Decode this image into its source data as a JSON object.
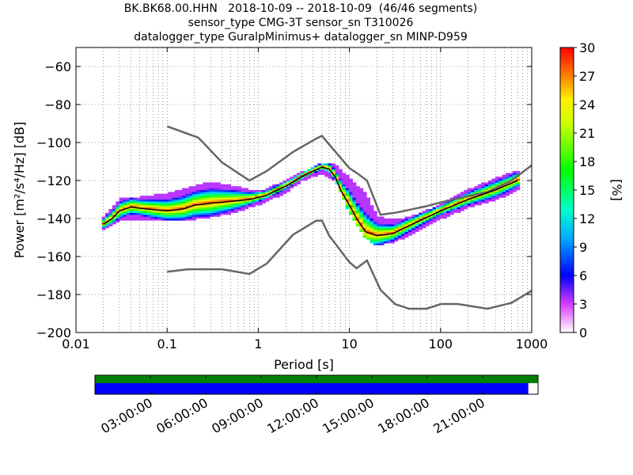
{
  "title": {
    "line1": "BK.BK68.00.HHN   2018-10-09 -- 2018-10-09  (46/46 segments)",
    "line2": "sensor_type CMG-3T sensor_sn T310026",
    "line3": "datalogger_type GuralpMinimus+ datalogger_sn MINP-D959"
  },
  "chart_data": {
    "type": "heatmap",
    "xlabel": "Period [s]",
    "ylabel": "Power [m²/s⁴/Hz] [dB]",
    "xscale": "log",
    "xlim": [
      0.01,
      1000
    ],
    "ylim": [
      -200,
      -50
    ],
    "xticks": [
      0.01,
      0.1,
      1,
      10,
      100,
      1000
    ],
    "xtick_labels": [
      "0.01",
      "0.1",
      "1",
      "10",
      "100",
      "1000"
    ],
    "yticks": [
      -200,
      -180,
      -160,
      -140,
      -120,
      -100,
      -80,
      -60
    ],
    "ytick_labels": [
      "−200",
      "−180",
      "−160",
      "−140",
      "−120",
      "−100",
      "−80",
      "−60"
    ],
    "grid": true,
    "colorbar": {
      "label": "[%]",
      "range": [
        0,
        30
      ],
      "ticks": [
        "0",
        "3",
        "6",
        "9",
        "12",
        "15",
        "18",
        "21",
        "24",
        "27",
        "30"
      ]
    },
    "mode_line": {
      "period": [
        0.02,
        0.025,
        0.03,
        0.04,
        0.06,
        0.1,
        0.15,
        0.2,
        0.3,
        0.5,
        0.8,
        1.2,
        2,
        3,
        4,
        5,
        6,
        7,
        8,
        10,
        12,
        15,
        20,
        30,
        40,
        60,
        100,
        200,
        400,
        700
      ],
      "power": [
        -143,
        -140,
        -136,
        -134,
        -135,
        -136,
        -135,
        -133,
        -132,
        -131,
        -130,
        -128,
        -123,
        -118,
        -115,
        -113,
        -114,
        -118,
        -125,
        -133,
        -140,
        -147,
        -149,
        -148,
        -145,
        -141,
        -136,
        -130,
        -125,
        -120
      ]
    },
    "spread": {
      "period": [
        0.02,
        0.03,
        0.05,
        0.1,
        0.2,
        0.3,
        0.5,
        0.8,
        1.2,
        2,
        3,
        5,
        7,
        10,
        15,
        20,
        30,
        50,
        100,
        200,
        400,
        700
      ],
      "upper": [
        -140,
        -131,
        -130,
        -128,
        -124,
        -122,
        -124,
        -126,
        -126,
        -121,
        -117,
        -112,
        -113,
        -120,
        -128,
        -140,
        -142,
        -140,
        -134,
        -126,
        -120,
        -116
      ],
      "lower": [
        -146,
        -141,
        -140,
        -141,
        -140,
        -139,
        -137,
        -134,
        -131,
        -126,
        -120,
        -116,
        -120,
        -137,
        -150,
        -154,
        -152,
        -148,
        -140,
        -134,
        -130,
        -125
      ]
    },
    "noise_models": [
      {
        "period": [
          0.1,
          0.17,
          0.22,
          0.4,
          0.8,
          1.24,
          2.4,
          4.3,
          5,
          6,
          10,
          12,
          15.6,
          21.9,
          31.6,
          45,
          70,
          101,
          154,
          328,
          600,
          1000
        ],
        "power": [
          -91.5,
          -95.5,
          -97.4,
          -110.5,
          -120,
          -115,
          -105,
          -98,
          -96.5,
          -101,
          -113.5,
          -116,
          -120,
          -138,
          -137,
          -135.5,
          -133.5,
          -131.5,
          -129.5,
          -126,
          -120,
          -112
        ]
      },
      {
        "period": [
          0.1,
          0.17,
          0.4,
          0.8,
          1.24,
          2.4,
          4.3,
          5,
          6,
          10,
          12,
          15.6,
          21.9,
          31.6,
          45,
          70,
          101,
          154,
          328,
          600,
          1000
        ],
        "power": [
          -168,
          -166.7,
          -166.7,
          -169.2,
          -163.7,
          -148.6,
          -141.2,
          -141.1,
          -149,
          -163,
          -166.2,
          -162.1,
          -177.5,
          -185,
          -187.5,
          -187.5,
          -185,
          -185,
          -187.5,
          -184.4,
          -178
        ]
      }
    ],
    "timeline": {
      "labels": [
        "03:00:00",
        "06:00:00",
        "09:00:00",
        "12:00:00",
        "15:00:00",
        "18:00:00",
        "21:00:00"
      ],
      "data_coverage": 0.978
    },
    "colors": {
      "mode_line": "#000000",
      "noise_model": "#666666",
      "timeline_top": "#008000",
      "timeline_bottom": "#0000ff"
    }
  }
}
